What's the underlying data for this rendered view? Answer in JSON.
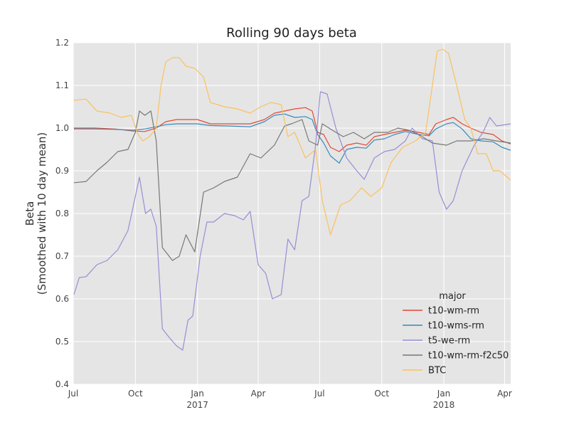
{
  "chart_data": {
    "type": "line",
    "title": "Rolling 90 days beta",
    "xlabel": "",
    "ylabel": "Beta",
    "ylabel_sub": "(Smoothed with 10 day mean)",
    "ylim": [
      0.4,
      1.2
    ],
    "y_ticks": [
      "0.4",
      "0.5",
      "0.6",
      "0.7",
      "0.8",
      "0.9",
      "1.0",
      "1.1",
      "1.2"
    ],
    "xlim": [
      "2016-07-01",
      "2018-04-10"
    ],
    "x_ticks": [
      {
        "date": "2016-07-01",
        "label": "Jul",
        "sublabel": ""
      },
      {
        "date": "2016-10-01",
        "label": "Oct",
        "sublabel": ""
      },
      {
        "date": "2017-01-01",
        "label": "Jan",
        "sublabel": "2017"
      },
      {
        "date": "2017-04-01",
        "label": "Apr",
        "sublabel": ""
      },
      {
        "date": "2017-07-01",
        "label": "Jul",
        "sublabel": ""
      },
      {
        "date": "2017-10-01",
        "label": "Oct",
        "sublabel": ""
      },
      {
        "date": "2018-01-01",
        "label": "Jan",
        "sublabel": "2018"
      },
      {
        "date": "2018-04-01",
        "label": "Apr",
        "sublabel": ""
      }
    ],
    "grid": true,
    "background": "#e5e5e5",
    "legend": {
      "title": "major",
      "position": "lower-right"
    },
    "series": [
      {
        "name": "t10-wm-rm",
        "color": "#e24a33",
        "points": [
          [
            "2016-07-02",
            1.0
          ],
          [
            "2016-08-01",
            1.0
          ],
          [
            "2016-09-01",
            0.998
          ],
          [
            "2016-09-28",
            0.993
          ],
          [
            "2016-10-15",
            0.992
          ],
          [
            "2016-11-01",
            1.0
          ],
          [
            "2016-11-15",
            1.015
          ],
          [
            "2016-12-01",
            1.02
          ],
          [
            "2017-01-01",
            1.02
          ],
          [
            "2017-01-20",
            1.01
          ],
          [
            "2017-02-15",
            1.01
          ],
          [
            "2017-03-20",
            1.01
          ],
          [
            "2017-04-10",
            1.02
          ],
          [
            "2017-04-25",
            1.035
          ],
          [
            "2017-05-10",
            1.04
          ],
          [
            "2017-05-25",
            1.045
          ],
          [
            "2017-06-10",
            1.048
          ],
          [
            "2017-06-20",
            1.04
          ],
          [
            "2017-06-28",
            0.99
          ],
          [
            "2017-07-07",
            0.985
          ],
          [
            "2017-07-17",
            0.955
          ],
          [
            "2017-07-30",
            0.945
          ],
          [
            "2017-08-10",
            0.96
          ],
          [
            "2017-08-25",
            0.965
          ],
          [
            "2017-09-08",
            0.96
          ],
          [
            "2017-09-20",
            0.98
          ],
          [
            "2017-10-05",
            0.985
          ],
          [
            "2017-10-20",
            0.99
          ],
          [
            "2017-11-05",
            0.995
          ],
          [
            "2017-11-25",
            0.99
          ],
          [
            "2017-12-10",
            0.985
          ],
          [
            "2017-12-20",
            1.01
          ],
          [
            "2018-01-05",
            1.02
          ],
          [
            "2018-01-15",
            1.025
          ],
          [
            "2018-01-28",
            1.01
          ],
          [
            "2018-02-10",
            1.0
          ],
          [
            "2018-02-25",
            0.99
          ],
          [
            "2018-03-15",
            0.985
          ],
          [
            "2018-03-28",
            0.97
          ],
          [
            "2018-04-10",
            0.963
          ]
        ]
      },
      {
        "name": "t10-wms-rm",
        "color": "#348abd",
        "points": [
          [
            "2016-07-02",
            0.998
          ],
          [
            "2016-08-01",
            0.998
          ],
          [
            "2016-09-01",
            0.997
          ],
          [
            "2016-09-28",
            0.995
          ],
          [
            "2016-10-15",
            0.998
          ],
          [
            "2016-11-01",
            1.003
          ],
          [
            "2016-11-15",
            1.008
          ],
          [
            "2016-12-01",
            1.01
          ],
          [
            "2017-01-01",
            1.01
          ],
          [
            "2017-01-20",
            1.006
          ],
          [
            "2017-02-15",
            1.005
          ],
          [
            "2017-03-20",
            1.003
          ],
          [
            "2017-04-10",
            1.015
          ],
          [
            "2017-04-25",
            1.03
          ],
          [
            "2017-05-10",
            1.033
          ],
          [
            "2017-05-25",
            1.025
          ],
          [
            "2017-06-10",
            1.027
          ],
          [
            "2017-06-20",
            1.02
          ],
          [
            "2017-06-28",
            0.985
          ],
          [
            "2017-07-07",
            0.965
          ],
          [
            "2017-07-17",
            0.935
          ],
          [
            "2017-07-30",
            0.918
          ],
          [
            "2017-08-10",
            0.95
          ],
          [
            "2017-08-25",
            0.955
          ],
          [
            "2017-09-08",
            0.953
          ],
          [
            "2017-09-20",
            0.972
          ],
          [
            "2017-10-05",
            0.975
          ],
          [
            "2017-10-20",
            0.985
          ],
          [
            "2017-11-05",
            0.992
          ],
          [
            "2017-11-25",
            0.985
          ],
          [
            "2017-12-10",
            0.982
          ],
          [
            "2017-12-20",
            0.998
          ],
          [
            "2018-01-05",
            1.01
          ],
          [
            "2018-01-15",
            1.013
          ],
          [
            "2018-01-28",
            0.998
          ],
          [
            "2018-02-10",
            0.975
          ],
          [
            "2018-02-25",
            0.97
          ],
          [
            "2018-03-15",
            0.968
          ],
          [
            "2018-03-28",
            0.955
          ],
          [
            "2018-04-10",
            0.948
          ]
        ]
      },
      {
        "name": "t5-we-rm",
        "color": "#988ed5",
        "points": [
          [
            "2016-07-02",
            0.61
          ],
          [
            "2016-07-10",
            0.65
          ],
          [
            "2016-07-20",
            0.652
          ],
          [
            "2016-08-05",
            0.68
          ],
          [
            "2016-08-20",
            0.69
          ],
          [
            "2016-09-05",
            0.715
          ],
          [
            "2016-09-20",
            0.76
          ],
          [
            "2016-10-01",
            0.84
          ],
          [
            "2016-10-07",
            0.885
          ],
          [
            "2016-10-16",
            0.8
          ],
          [
            "2016-10-24",
            0.81
          ],
          [
            "2016-11-01",
            0.77
          ],
          [
            "2016-11-10",
            0.53
          ],
          [
            "2016-11-20",
            0.51
          ],
          [
            "2016-12-01",
            0.49
          ],
          [
            "2016-12-10",
            0.48
          ],
          [
            "2016-12-18",
            0.55
          ],
          [
            "2016-12-25",
            0.56
          ],
          [
            "2017-01-05",
            0.7
          ],
          [
            "2017-01-15",
            0.78
          ],
          [
            "2017-01-25",
            0.78
          ],
          [
            "2017-02-10",
            0.8
          ],
          [
            "2017-02-25",
            0.795
          ],
          [
            "2017-03-10",
            0.785
          ],
          [
            "2017-03-20",
            0.805
          ],
          [
            "2017-04-01",
            0.68
          ],
          [
            "2017-04-12",
            0.66
          ],
          [
            "2017-04-22",
            0.6
          ],
          [
            "2017-05-05",
            0.61
          ],
          [
            "2017-05-15",
            0.74
          ],
          [
            "2017-05-25",
            0.715
          ],
          [
            "2017-06-05",
            0.83
          ],
          [
            "2017-06-15",
            0.84
          ],
          [
            "2017-06-25",
            0.96
          ],
          [
            "2017-07-02",
            1.085
          ],
          [
            "2017-07-12",
            1.08
          ],
          [
            "2017-07-25",
            1.0
          ],
          [
            "2017-08-10",
            0.93
          ],
          [
            "2017-08-25",
            0.9
          ],
          [
            "2017-09-05",
            0.88
          ],
          [
            "2017-09-20",
            0.93
          ],
          [
            "2017-10-05",
            0.945
          ],
          [
            "2017-10-20",
            0.95
          ],
          [
            "2017-11-05",
            0.97
          ],
          [
            "2017-11-15",
            1.0
          ],
          [
            "2017-11-30",
            0.975
          ],
          [
            "2017-12-15",
            0.97
          ],
          [
            "2017-12-25",
            0.85
          ],
          [
            "2018-01-05",
            0.81
          ],
          [
            "2018-01-15",
            0.83
          ],
          [
            "2018-01-28",
            0.9
          ],
          [
            "2018-02-15",
            0.96
          ],
          [
            "2018-02-28",
            0.99
          ],
          [
            "2018-03-10",
            1.025
          ],
          [
            "2018-03-20",
            1.005
          ],
          [
            "2018-04-10",
            1.01
          ]
        ]
      },
      {
        "name": "t10-wm-rm-f2c50",
        "color": "#777777",
        "points": [
          [
            "2016-07-02",
            0.872
          ],
          [
            "2016-07-20",
            0.875
          ],
          [
            "2016-08-05",
            0.9
          ],
          [
            "2016-08-20",
            0.92
          ],
          [
            "2016-09-05",
            0.945
          ],
          [
            "2016-09-20",
            0.95
          ],
          [
            "2016-10-01",
            0.99
          ],
          [
            "2016-10-07",
            1.04
          ],
          [
            "2016-10-15",
            1.03
          ],
          [
            "2016-10-24",
            1.04
          ],
          [
            "2016-11-01",
            0.97
          ],
          [
            "2016-11-10",
            0.72
          ],
          [
            "2016-11-25",
            0.69
          ],
          [
            "2016-12-05",
            0.7
          ],
          [
            "2016-12-15",
            0.75
          ],
          [
            "2016-12-28",
            0.71
          ],
          [
            "2017-01-10",
            0.85
          ],
          [
            "2017-01-25",
            0.86
          ],
          [
            "2017-02-10",
            0.875
          ],
          [
            "2017-03-01",
            0.885
          ],
          [
            "2017-03-20",
            0.94
          ],
          [
            "2017-04-05",
            0.93
          ],
          [
            "2017-04-25",
            0.96
          ],
          [
            "2017-05-10",
            1.005
          ],
          [
            "2017-05-20",
            1.01
          ],
          [
            "2017-06-05",
            1.02
          ],
          [
            "2017-06-15",
            0.97
          ],
          [
            "2017-06-28",
            0.96
          ],
          [
            "2017-07-05",
            1.01
          ],
          [
            "2017-07-20",
            0.995
          ],
          [
            "2017-08-05",
            0.98
          ],
          [
            "2017-08-20",
            0.99
          ],
          [
            "2017-09-05",
            0.975
          ],
          [
            "2017-09-20",
            0.99
          ],
          [
            "2017-10-10",
            0.99
          ],
          [
            "2017-10-25",
            1.0
          ],
          [
            "2017-11-10",
            0.995
          ],
          [
            "2017-11-25",
            0.985
          ],
          [
            "2017-12-15",
            0.965
          ],
          [
            "2018-01-05",
            0.96
          ],
          [
            "2018-01-20",
            0.97
          ],
          [
            "2018-02-10",
            0.97
          ],
          [
            "2018-03-01",
            0.975
          ],
          [
            "2018-03-20",
            0.97
          ],
          [
            "2018-04-10",
            0.965
          ]
        ]
      },
      {
        "name": "BTC",
        "color": "#fbc15e",
        "points": [
          [
            "2016-07-02",
            1.065
          ],
          [
            "2016-07-20",
            1.068
          ],
          [
            "2016-08-05",
            1.04
          ],
          [
            "2016-08-25",
            1.035
          ],
          [
            "2016-09-10",
            1.025
          ],
          [
            "2016-09-25",
            1.03
          ],
          [
            "2016-10-05",
            0.985
          ],
          [
            "2016-10-12",
            0.97
          ],
          [
            "2016-10-22",
            0.98
          ],
          [
            "2016-11-01",
            1.0
          ],
          [
            "2016-11-08",
            1.1
          ],
          [
            "2016-11-15",
            1.155
          ],
          [
            "2016-11-25",
            1.165
          ],
          [
            "2016-12-05",
            1.165
          ],
          [
            "2016-12-15",
            1.145
          ],
          [
            "2016-12-28",
            1.14
          ],
          [
            "2017-01-10",
            1.12
          ],
          [
            "2017-01-20",
            1.06
          ],
          [
            "2017-02-10",
            1.05
          ],
          [
            "2017-03-01",
            1.045
          ],
          [
            "2017-03-20",
            1.035
          ],
          [
            "2017-04-05",
            1.05
          ],
          [
            "2017-04-20",
            1.06
          ],
          [
            "2017-05-05",
            1.055
          ],
          [
            "2017-05-15",
            0.98
          ],
          [
            "2017-05-25",
            0.99
          ],
          [
            "2017-06-10",
            0.93
          ],
          [
            "2017-06-25",
            0.95
          ],
          [
            "2017-07-05",
            0.83
          ],
          [
            "2017-07-17",
            0.75
          ],
          [
            "2017-08-01",
            0.82
          ],
          [
            "2017-08-15",
            0.83
          ],
          [
            "2017-09-01",
            0.86
          ],
          [
            "2017-09-15",
            0.84
          ],
          [
            "2017-10-01",
            0.86
          ],
          [
            "2017-10-15",
            0.92
          ],
          [
            "2017-11-01",
            0.955
          ],
          [
            "2017-11-20",
            0.97
          ],
          [
            "2017-12-05",
            0.99
          ],
          [
            "2017-12-15",
            1.1
          ],
          [
            "2017-12-22",
            1.18
          ],
          [
            "2017-12-30",
            1.185
          ],
          [
            "2018-01-08",
            1.175
          ],
          [
            "2018-01-20",
            1.1
          ],
          [
            "2018-02-01",
            1.02
          ],
          [
            "2018-02-10",
            1.0
          ],
          [
            "2018-02-20",
            0.94
          ],
          [
            "2018-03-05",
            0.94
          ],
          [
            "2018-03-15",
            0.9
          ],
          [
            "2018-03-25",
            0.9
          ],
          [
            "2018-04-10",
            0.878
          ]
        ]
      }
    ]
  }
}
